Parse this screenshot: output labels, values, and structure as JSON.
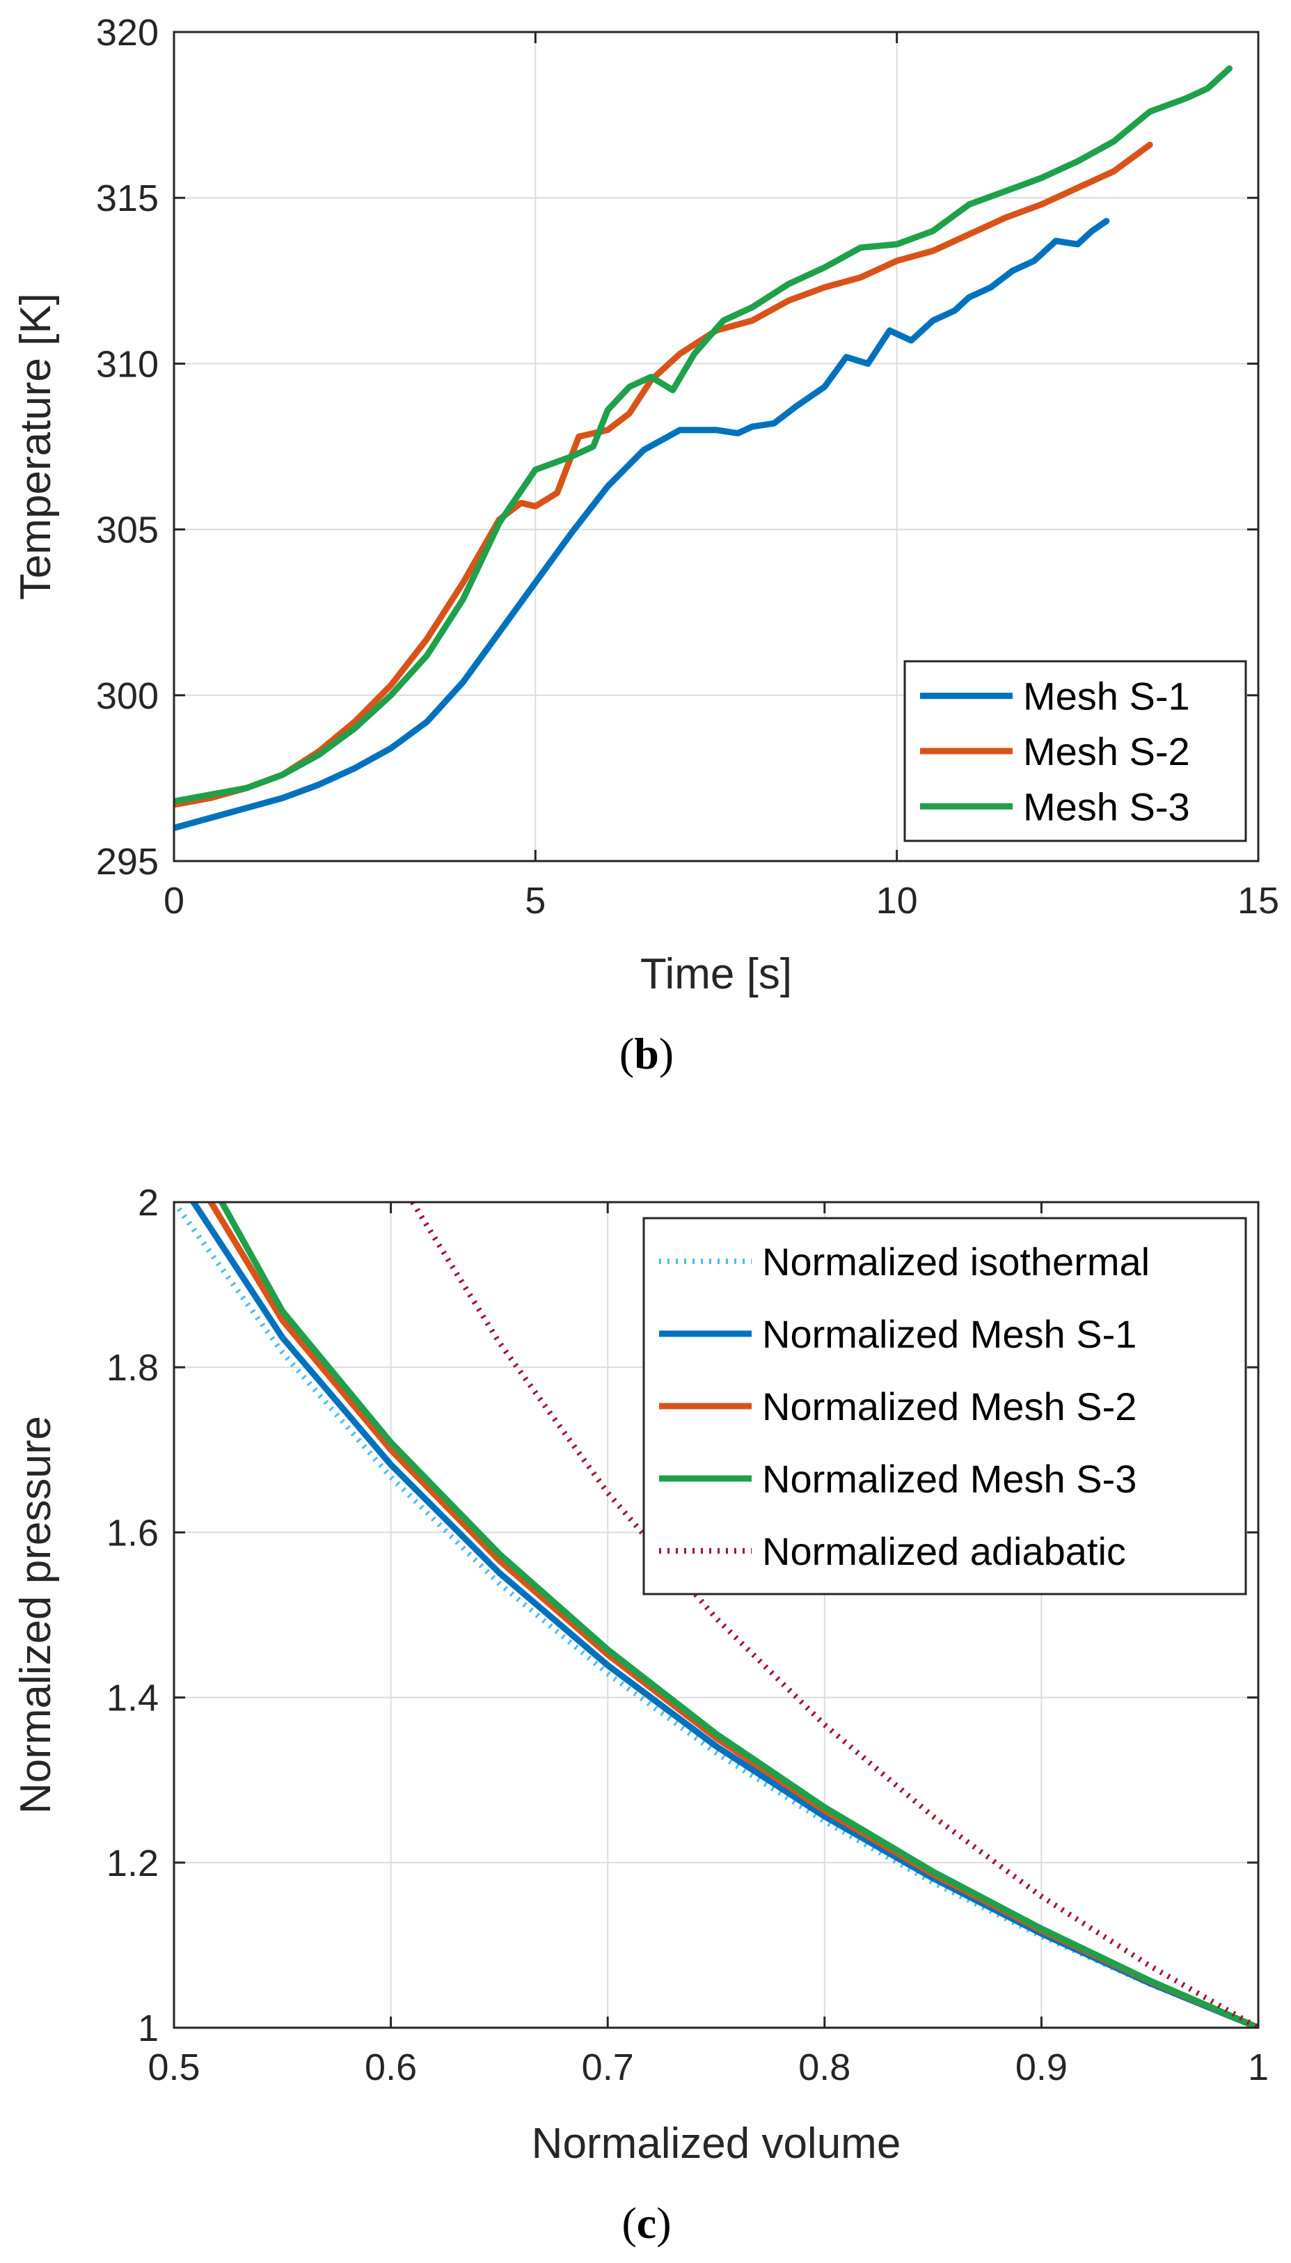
{
  "chart_data": [
    {
      "type": "line",
      "caption": {
        "open": "(",
        "letter": "b",
        "close": ")"
      },
      "title": "",
      "xlabel": "Time [s]",
      "ylabel": "Temperature [K]",
      "xlim": [
        0,
        15
      ],
      "ylim": [
        295,
        320
      ],
      "xticks": [
        0,
        5,
        10,
        15
      ],
      "yticks": [
        295,
        300,
        305,
        310,
        315,
        320
      ],
      "grid": true,
      "legend_position": "bottom-right",
      "series": [
        {
          "name": "Mesh S-1",
          "color": "#0072BD",
          "style": "solid",
          "x": [
            0,
            0.5,
            1,
            1.5,
            2,
            2.5,
            3,
            3.5,
            4,
            4.5,
            5,
            5.5,
            6,
            6.5,
            7,
            7.5,
            7.8,
            8,
            8.3,
            8.6,
            9,
            9.3,
            9.6,
            9.9,
            10.2,
            10.5,
            10.8,
            11,
            11.3,
            11.6,
            11.9,
            12.2,
            12.5,
            12.7,
            12.9
          ],
          "y": [
            296.0,
            296.3,
            296.6,
            296.9,
            297.3,
            297.8,
            298.4,
            299.2,
            300.4,
            301.9,
            303.4,
            304.9,
            306.3,
            307.4,
            308.0,
            308.0,
            307.9,
            308.1,
            308.2,
            308.7,
            309.3,
            310.2,
            310.0,
            311.0,
            310.7,
            311.3,
            311.6,
            312.0,
            312.3,
            312.8,
            313.1,
            313.7,
            313.6,
            314.0,
            314.3
          ]
        },
        {
          "name": "Mesh S-2",
          "color": "#D95319",
          "style": "solid",
          "x": [
            0,
            0.5,
            1,
            1.5,
            2,
            2.5,
            3,
            3.5,
            4,
            4.5,
            4.8,
            5,
            5.3,
            5.6,
            6,
            6.3,
            6.6,
            7,
            7.5,
            8,
            8.5,
            9,
            9.5,
            10,
            10.5,
            11,
            11.5,
            12,
            12.5,
            13,
            13.5
          ],
          "y": [
            296.7,
            296.9,
            297.2,
            297.6,
            298.3,
            299.2,
            300.3,
            301.7,
            303.4,
            305.3,
            305.8,
            305.7,
            306.1,
            307.8,
            308.0,
            308.5,
            309.5,
            310.3,
            311.0,
            311.3,
            311.9,
            312.3,
            312.6,
            313.1,
            313.4,
            313.9,
            314.4,
            314.8,
            315.3,
            315.8,
            316.6
          ]
        },
        {
          "name": "Mesh S-3",
          "color": "#1FA04A",
          "style": "solid",
          "x": [
            0,
            0.5,
            1,
            1.5,
            2,
            2.5,
            3,
            3.5,
            4,
            4.5,
            5,
            5.5,
            5.8,
            6,
            6.3,
            6.6,
            6.9,
            7.2,
            7.6,
            8,
            8.5,
            9,
            9.5,
            10,
            10.5,
            11,
            11.5,
            12,
            12.5,
            13,
            13.5,
            14,
            14.3,
            14.6
          ],
          "y": [
            296.8,
            297.0,
            297.2,
            297.6,
            298.2,
            299.0,
            300.0,
            301.2,
            302.9,
            305.2,
            306.8,
            307.2,
            307.5,
            308.6,
            309.3,
            309.6,
            309.2,
            310.3,
            311.3,
            311.7,
            312.4,
            312.9,
            313.5,
            313.6,
            314.0,
            314.8,
            315.2,
            315.6,
            316.1,
            316.7,
            317.6,
            318.0,
            318.3,
            318.9
          ]
        }
      ]
    },
    {
      "type": "line",
      "caption": {
        "open": "(",
        "letter": "c",
        "close": ")"
      },
      "title": "",
      "xlabel": "Normalized volume",
      "ylabel": "Normalized pressure",
      "xlim": [
        0.5,
        1
      ],
      "ylim": [
        1,
        2
      ],
      "xticks": [
        0.5,
        0.6,
        0.7,
        0.8,
        0.9,
        1
      ],
      "xtick_labels": [
        "0.5",
        "0.6",
        "0.7",
        "0.8",
        "0.9",
        "1"
      ],
      "yticks": [
        1,
        1.2,
        1.4,
        1.6,
        1.8,
        2
      ],
      "ytick_labels": [
        "1",
        "1.2",
        "1.4",
        "1.6",
        "1.8",
        "2"
      ],
      "grid": true,
      "legend_position": "top-right",
      "series": [
        {
          "name": "Normalized isothermal",
          "color": "#4DBEEE",
          "style": "dotted",
          "x": [
            0.5,
            0.55,
            0.6,
            0.65,
            0.7,
            0.75,
            0.8,
            0.85,
            0.9,
            0.95,
            1.0
          ],
          "y": [
            2.0,
            1.818,
            1.667,
            1.538,
            1.429,
            1.333,
            1.25,
            1.176,
            1.111,
            1.053,
            1.0
          ]
        },
        {
          "name": "Normalized Mesh S-1",
          "color": "#0072BD",
          "style": "solid",
          "x": [
            0.509,
            0.55,
            0.6,
            0.65,
            0.7,
            0.75,
            0.8,
            0.85,
            0.9,
            0.95,
            1.0
          ],
          "y": [
            2.0,
            1.836,
            1.682,
            1.551,
            1.439,
            1.341,
            1.256,
            1.181,
            1.114,
            1.054,
            1.0
          ]
        },
        {
          "name": "Normalized Mesh S-2",
          "color": "#D95319",
          "style": "solid",
          "x": [
            0.517,
            0.55,
            0.6,
            0.65,
            0.7,
            0.75,
            0.8,
            0.85,
            0.9,
            0.95,
            1.0
          ],
          "y": [
            2.0,
            1.857,
            1.7,
            1.566,
            1.452,
            1.351,
            1.263,
            1.186,
            1.118,
            1.056,
            1.0
          ]
        },
        {
          "name": "Normalized Mesh S-3",
          "color": "#1FA04A",
          "style": "solid",
          "x": [
            0.522,
            0.55,
            0.6,
            0.65,
            0.7,
            0.75,
            0.8,
            0.85,
            0.9,
            0.95,
            1.0
          ],
          "y": [
            2.0,
            1.868,
            1.709,
            1.574,
            1.458,
            1.356,
            1.267,
            1.189,
            1.12,
            1.057,
            1.0
          ]
        },
        {
          "name": "Normalized adiabatic",
          "color": "#A2142F",
          "style": "dotted",
          "x": [
            0.61,
            0.65,
            0.7,
            0.75,
            0.8,
            0.85,
            0.9,
            0.95,
            1.0
          ],
          "y": [
            2.0,
            1.83,
            1.648,
            1.496,
            1.367,
            1.256,
            1.159,
            1.075,
            1.0
          ]
        }
      ]
    }
  ]
}
